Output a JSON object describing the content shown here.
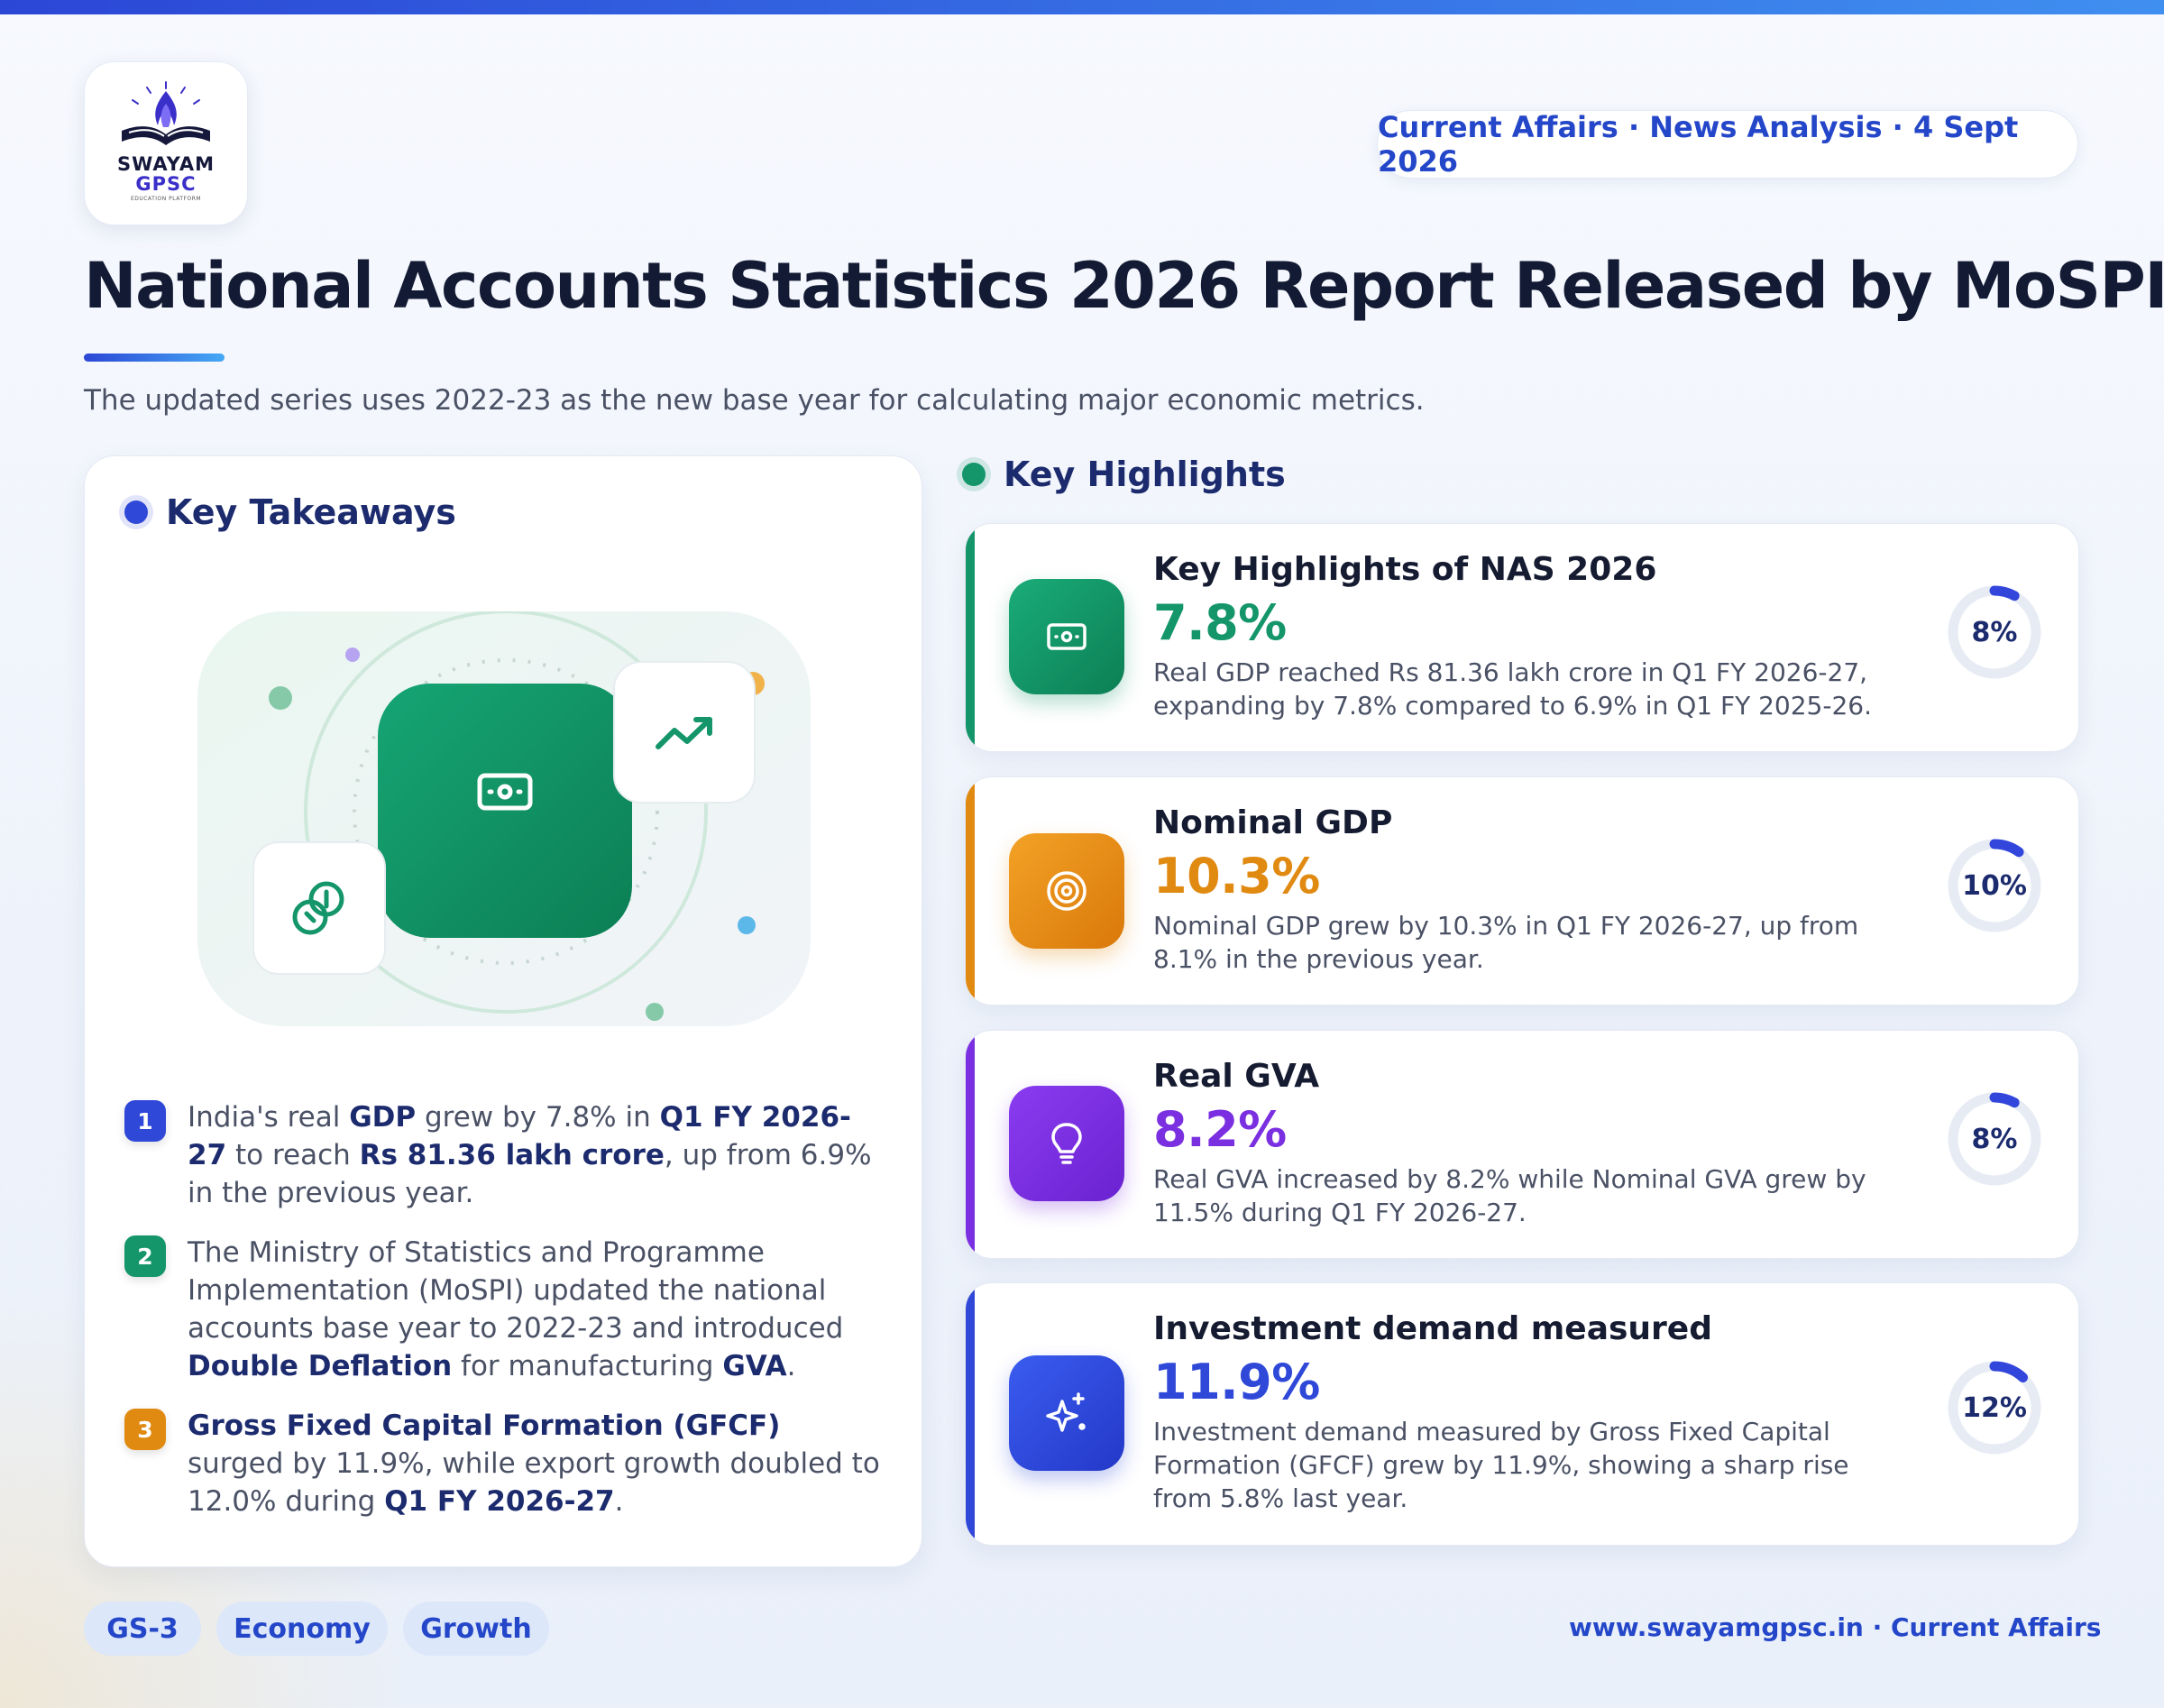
{
  "brand": {
    "name_line1": "SWAYAM",
    "name_line2": "GPSC",
    "tagline": "EDUCATION PLATFORM"
  },
  "header": {
    "date_pill": "Current Affairs · News Analysis · 4 Sept 2026",
    "title": "National Accounts Statistics 2026 Report Released by MoSPI",
    "subtitle": "The updated series uses 2022-23 as the new base year for calculating major economic metrics."
  },
  "takeaways": {
    "heading": "Key Takeaways",
    "items": [
      {
        "num": "1",
        "color": "#2f48d8"
      },
      {
        "num": "2",
        "color": "#14956a"
      },
      {
        "num": "3",
        "color": "#e08a12"
      }
    ],
    "item1": {
      "a": "India's real ",
      "b1": "GDP",
      "c": " grew by 7.8% in ",
      "b2": "Q1 FY 2026-27",
      "d": " to reach ",
      "b3": "Rs 81.36 lakh crore",
      "e": ", up from 6.9% in the previous year."
    },
    "item2": {
      "a": "The Ministry of Statistics and Programme Implementation (MoSPI) updated the national accounts base year to 2022-23 and introduced ",
      "b1": "Double Deflation",
      "c": " for manufacturing ",
      "b2": "GVA",
      "d": "."
    },
    "item3": {
      "b1": "Gross Fixed Capital Formation (GFCF)",
      "a": " surged by 11.9%, while export growth doubled to 12.0% during ",
      "b2": "Q1 FY 2026-27",
      "c": "."
    }
  },
  "highlights": {
    "heading": "Key Highlights",
    "cards": [
      {
        "title": "Key Highlights of NAS 2026",
        "value": "7.8%",
        "desc": "Real GDP reached Rs 81.36 lakh crore in Q1 FY 2026-27, expanding by 7.8% compared to 6.9% in Q1 FY 2025-26.",
        "ring_label": "8%",
        "ring_fraction": 0.08,
        "accent": "#14956a",
        "icon": "money-icon"
      },
      {
        "title": "Nominal GDP",
        "value": "10.3%",
        "desc": "Nominal GDP grew by 10.3% in Q1 FY 2026-27, up from 8.1% in the previous year.",
        "ring_label": "10%",
        "ring_fraction": 0.1,
        "accent": "#e08a12",
        "icon": "target-icon"
      },
      {
        "title": "Real GVA",
        "value": "8.2%",
        "desc": "Real GVA increased by 8.2% while Nominal GVA grew by 11.5% during Q1 FY 2026-27.",
        "ring_label": "8%",
        "ring_fraction": 0.08,
        "accent": "#7a2fe0",
        "icon": "lightbulb-icon"
      },
      {
        "title": "Investment demand measured",
        "value": "11.9%",
        "desc": "Investment demand measured by Gross Fixed Capital Formation (GFCF) grew by 11.9%, showing a sharp rise from 5.8% last year.",
        "ring_label": "12%",
        "ring_fraction": 0.12,
        "accent": "#2f48d8",
        "icon": "sparkle-icon"
      }
    ]
  },
  "footer": {
    "tags": [
      "GS-3",
      "Economy",
      "Growth"
    ],
    "link": "www.swayamgpsc.in · Current Affairs"
  },
  "colors": {
    "primary": "#2446c9",
    "title": "#131a33",
    "green": "#14956a",
    "orange": "#e08a12",
    "purple": "#7a2fe0",
    "blue": "#2f48d8"
  }
}
